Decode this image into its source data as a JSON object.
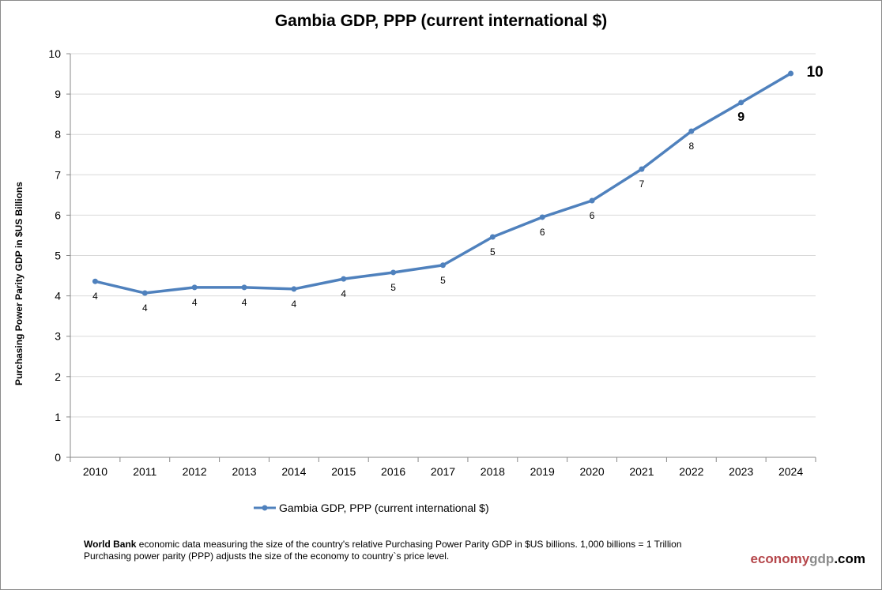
{
  "chart_data": {
    "type": "line",
    "title": "Gambia GDP, PPP (current international $)",
    "ylabel": "Purchasing Power Parity GDP in $US Billions",
    "xlabel": "",
    "categories": [
      "2010",
      "2011",
      "2012",
      "2013",
      "2014",
      "2015",
      "2016",
      "2017",
      "2018",
      "2019",
      "2020",
      "2021",
      "2022",
      "2023",
      "2024"
    ],
    "series": [
      {
        "name": "Gambia GDP, PPP (current international $)",
        "values": [
          4.36,
          4.07,
          4.21,
          4.21,
          4.17,
          4.42,
          4.58,
          4.76,
          5.46,
          5.95,
          6.36,
          7.14,
          8.08,
          8.79,
          9.51
        ],
        "data_labels": [
          "4",
          "4",
          "4",
          "4",
          "4",
          "4",
          "5",
          "5",
          "5",
          "6",
          "6",
          "7",
          "8",
          "9",
          "10"
        ]
      }
    ],
    "ylim": [
      0,
      10
    ],
    "yticks": [
      "0",
      "1",
      "2",
      "3",
      "4",
      "5",
      "6",
      "7",
      "8",
      "9",
      "10"
    ],
    "grid": true,
    "legend_position": "bottom",
    "line_color": "#4f81bd"
  },
  "footer": {
    "source_bold": "World Bank",
    "line1_rest": " economic data  measuring the size of the country's relative  Purchasing Power Parity GDP in $US billions. 1,000 billions = 1 Trillion",
    "line2": "Purchasing power parity (PPP) adjusts the size of the economy to country`s price level."
  },
  "logo": {
    "part1": "economy",
    "part2": "gdp",
    "part3": ".com"
  }
}
